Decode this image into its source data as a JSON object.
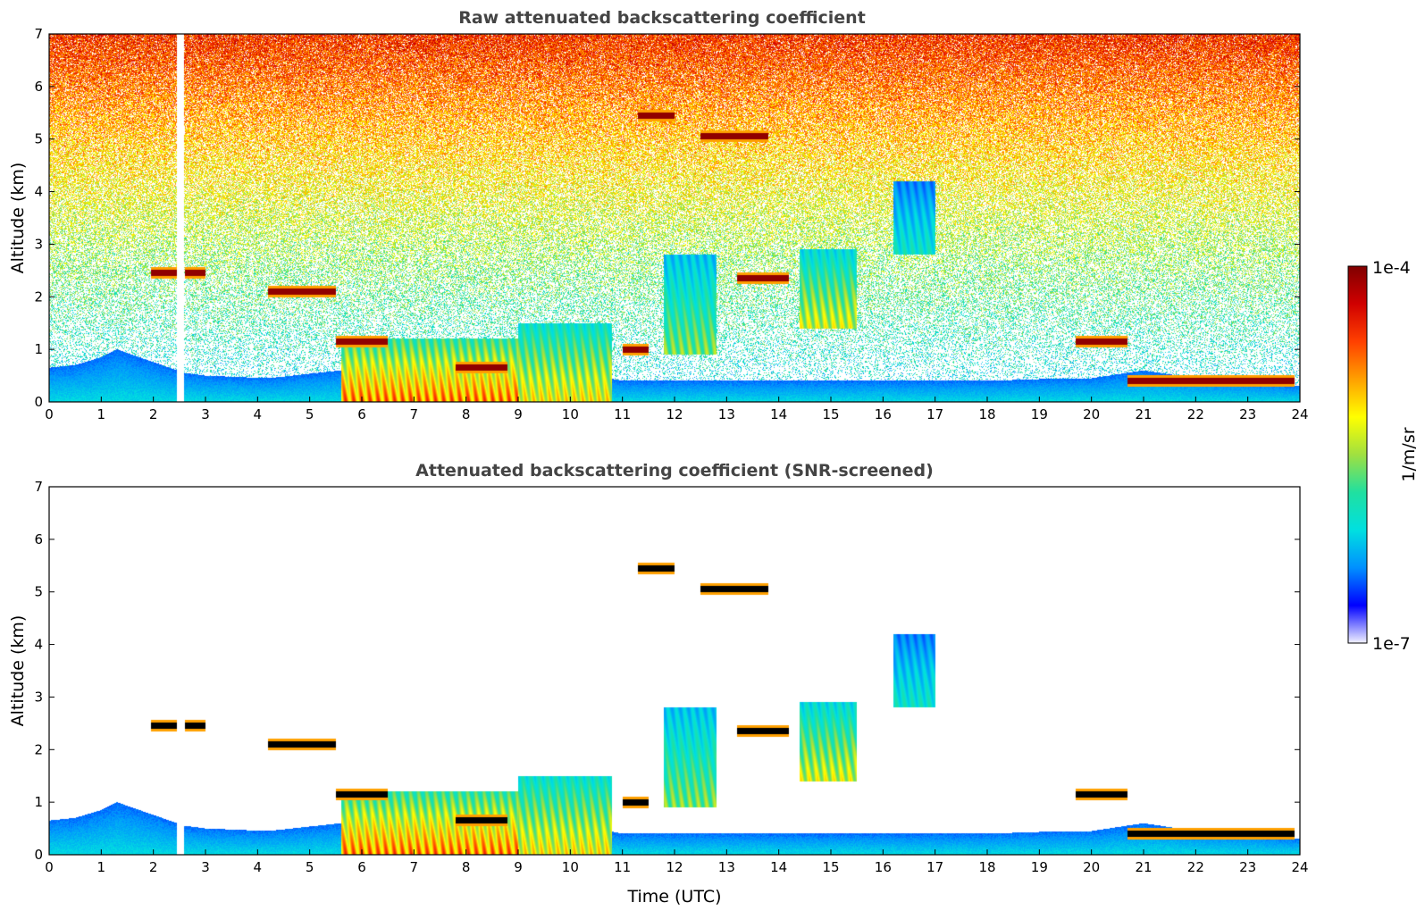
{
  "colors": {
    "colormap": [
      "#f2f2ff",
      "#0000ff",
      "#0090ff",
      "#00e0e0",
      "#20e0a0",
      "#a0e040",
      "#ffff00",
      "#ffa000",
      "#ff4000",
      "#d00000",
      "#800000"
    ],
    "background": "#ffffff",
    "axis": "#000000"
  },
  "colorbar": {
    "max_label": "1e-4",
    "min_label": "1e-7",
    "unit_label": "1/m/sr",
    "scale": "log"
  },
  "chart_data": [
    {
      "type": "heatmap",
      "title": "Raw attenuated backscattering coefficient",
      "xlabel": "",
      "ylabel": "Altitude (km)",
      "xlim": [
        0,
        24
      ],
      "ylim": [
        0,
        7
      ],
      "x_ticks": [
        "0",
        "1",
        "2",
        "3",
        "4",
        "5",
        "6",
        "7",
        "8",
        "9",
        "10",
        "11",
        "12",
        "13",
        "14",
        "15",
        "16",
        "17",
        "18",
        "19",
        "20",
        "21",
        "22",
        "23",
        "24"
      ],
      "y_ticks": [
        "0",
        "1",
        "2",
        "3",
        "4",
        "5",
        "6",
        "7"
      ],
      "data_gap_time": [
        2.45,
        2.58
      ],
      "background_noise": "present",
      "boundary_layer_top": [
        [
          0,
          0.65
        ],
        [
          0.5,
          0.7
        ],
        [
          1,
          0.85
        ],
        [
          1.3,
          1.0
        ],
        [
          2.6,
          0.55
        ],
        [
          3,
          0.5
        ],
        [
          4.2,
          0.45
        ],
        [
          5.6,
          0.6
        ],
        [
          6,
          0.6
        ],
        [
          7,
          0.6
        ],
        [
          8,
          0.6
        ],
        [
          9,
          0.6
        ],
        [
          10,
          0.6
        ],
        [
          11,
          0.4
        ],
        [
          12,
          0.4
        ],
        [
          14,
          0.4
        ],
        [
          16,
          0.4
        ],
        [
          18,
          0.4
        ],
        [
          19.5,
          0.45
        ],
        [
          20,
          0.45
        ],
        [
          21,
          0.6
        ],
        [
          22,
          0.45
        ],
        [
          23,
          0.4
        ],
        [
          24,
          0.3
        ]
      ],
      "cloud_layers": [
        {
          "t": [
            1.95,
            2.55
          ],
          "z": 2.45,
          "intensity": 1.0
        },
        {
          "t": [
            2.6,
            3.0
          ],
          "z": 2.45,
          "intensity": 1.0
        },
        {
          "t": [
            4.2,
            5.5
          ],
          "z": 2.1,
          "intensity": 1.0
        },
        {
          "t": [
            5.5,
            6.5
          ],
          "z": 1.15,
          "intensity": 1.0
        },
        {
          "t": [
            7.8,
            8.8
          ],
          "z": 0.65,
          "intensity": 1.0
        },
        {
          "t": [
            11.0,
            11.5
          ],
          "z": 1.0,
          "intensity": 1.0
        },
        {
          "t": [
            11.3,
            12.0
          ],
          "z": 5.45,
          "intensity": 1.0
        },
        {
          "t": [
            12.5,
            13.8
          ],
          "z": 5.05,
          "intensity": 1.0
        },
        {
          "t": [
            13.2,
            14.2
          ],
          "z": 2.35,
          "intensity": 1.0
        },
        {
          "t": [
            19.7,
            20.7
          ],
          "z": 1.15,
          "intensity": 1.0
        },
        {
          "t": [
            20.7,
            23.9
          ],
          "z": 0.4,
          "intensity": 1.0
        }
      ],
      "aerosol_plumes": [
        {
          "t": [
            5.6,
            9.0
          ],
          "z": [
            0.0,
            1.2
          ],
          "intensity": 0.85
        },
        {
          "t": [
            9.0,
            10.8
          ],
          "z": [
            0.0,
            1.5
          ],
          "intensity": 0.7
        },
        {
          "t": [
            11.8,
            12.8
          ],
          "z": [
            0.9,
            2.8
          ],
          "intensity": 0.55
        },
        {
          "t": [
            14.4,
            15.5
          ],
          "z": [
            1.4,
            2.9
          ],
          "intensity": 0.65
        },
        {
          "t": [
            16.2,
            17.0
          ],
          "z": [
            2.8,
            4.2
          ],
          "intensity": 0.4
        }
      ]
    },
    {
      "type": "heatmap",
      "title": "Attenuated backscattering coefficient (SNR-screened)",
      "xlabel": "Time (UTC)",
      "ylabel": "Altitude (km)",
      "xlim": [
        0,
        24
      ],
      "ylim": [
        0,
        7
      ],
      "x_ticks": [
        "0",
        "1",
        "2",
        "3",
        "4",
        "5",
        "6",
        "7",
        "8",
        "9",
        "10",
        "11",
        "12",
        "13",
        "14",
        "15",
        "16",
        "17",
        "18",
        "19",
        "20",
        "21",
        "22",
        "23",
        "24"
      ],
      "y_ticks": [
        "0",
        "1",
        "2",
        "3",
        "4",
        "5",
        "6",
        "7"
      ],
      "data_gap_time": [
        2.45,
        2.58
      ],
      "background_noise": "screened",
      "saturated_color": "#000000"
    }
  ]
}
